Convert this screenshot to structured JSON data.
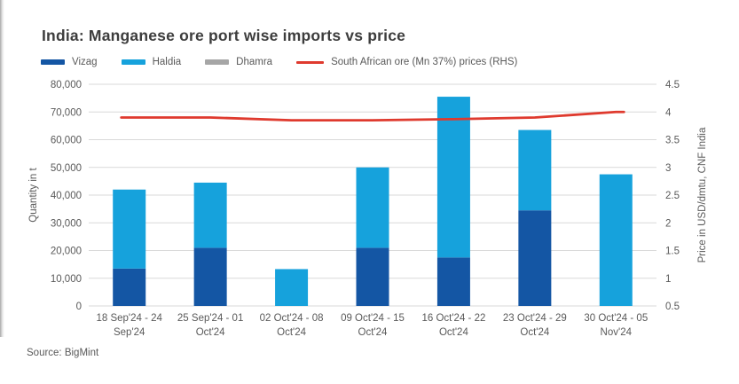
{
  "meta": {
    "title": "India: Manganese ore port wise imports vs price",
    "source": "Source: BigMint"
  },
  "legend": [
    {
      "label": "Vizag",
      "color": "#1456A4",
      "type": "bar"
    },
    {
      "label": "Haldia",
      "color": "#16A2DC",
      "type": "bar"
    },
    {
      "label": "Dhamra",
      "color": "#A6A6A6",
      "type": "bar"
    },
    {
      "label": "South African ore (Mn 37%) prices (RHS)",
      "color": "#DF3A2E",
      "type": "line"
    }
  ],
  "chart_data": {
    "type": "bar",
    "subtype": "stacked-bars-with-line-overlay",
    "title": "India: Manganese ore port wise imports vs price",
    "grid": true,
    "legend_position": "top",
    "categories": [
      "18 Sep'24 - 24 Sep'24",
      "25 Sep'24 - 01 Oct'24",
      "02 Oct'24 - 08 Oct'24",
      "09 Oct'24 - 15 Oct'24",
      "16 Oct'24 - 22 Oct'24",
      "23 Oct'24 - 29 Oct'24",
      "30 Oct'24 - 05 Nov'24"
    ],
    "category_lines": [
      [
        "18 Sep'24 - 24",
        "Sep'24"
      ],
      [
        "25 Sep'24 - 01",
        "Oct'24"
      ],
      [
        "02 Oct'24 - 08",
        "Oct'24"
      ],
      [
        "09 Oct'24 - 15",
        "Oct'24"
      ],
      [
        "16 Oct'24 - 22",
        "Oct'24"
      ],
      [
        "23 Oct'24 - 29",
        "Oct'24"
      ],
      [
        "30 Oct'24 - 05",
        "Nov'24"
      ]
    ],
    "series": [
      {
        "name": "Vizag",
        "type": "bar",
        "axis": "left",
        "color": "#1456A4",
        "values": [
          13500,
          21000,
          0,
          21000,
          17500,
          34500,
          0
        ]
      },
      {
        "name": "Haldia",
        "type": "bar",
        "axis": "left",
        "color": "#16A2DC",
        "values": [
          28500,
          23500,
          13300,
          29000,
          58000,
          29000,
          47500
        ]
      },
      {
        "name": "Dhamra",
        "type": "bar",
        "axis": "left",
        "color": "#A6A6A6",
        "values": [
          0,
          0,
          0,
          0,
          0,
          0,
          0
        ]
      },
      {
        "name": "South African ore (Mn 37%) prices (RHS)",
        "type": "line",
        "axis": "right",
        "color": "#DF3A2E",
        "values": [
          3.9,
          3.9,
          3.85,
          3.85,
          3.87,
          3.9,
          4.0
        ]
      }
    ],
    "left_axis": {
      "label": "Quantity in t",
      "min": 0,
      "max": 80000,
      "step": 10000,
      "tick_labels": [
        "0",
        "10,000",
        "20,000",
        "30,000",
        "40,000",
        "50,000",
        "60,000",
        "70,000",
        "80,000"
      ]
    },
    "right_axis": {
      "label": "Price in USD/dmtu, CNF India",
      "min": 0.5,
      "max": 4.5,
      "step": 0.5,
      "tick_labels": [
        "0.5",
        "1",
        "1.5",
        "2",
        "2.5",
        "3",
        "3.5",
        "4",
        "4.5"
      ]
    },
    "grid_color": "#d9d9d9"
  }
}
